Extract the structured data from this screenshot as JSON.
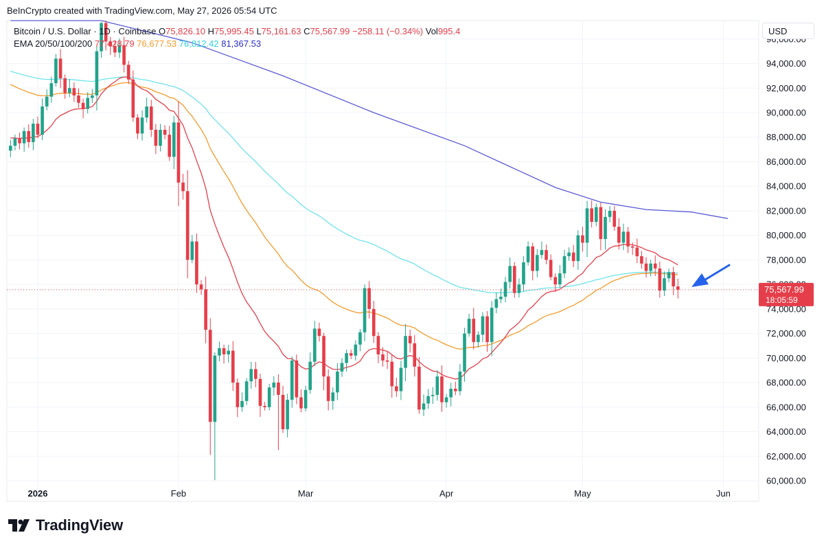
{
  "credit": "BeInCrypto created with TradingView.com, May 27, 2026 05:54 UTC",
  "legend": {
    "symbol": "Bitcoin / U.S. Dollar · 1D · Coinbase",
    "open_label": "O",
    "open": "75,826.10",
    "high_label": "H",
    "high": "75,995.45",
    "low_label": "L",
    "low": "75,161.63",
    "close_label": "C",
    "close": "75,567.99",
    "change": "−258.11 (−0.34%)",
    "vol_label": "Vol",
    "vol": "995.4",
    "ema_label": "EMA 20/50/100/200",
    "ema20": "77,428.79",
    "ema50": "76,677.53",
    "ema100": "76,812.42",
    "ema200": "81,367.53"
  },
  "currency": "USD",
  "brand": "TradingView",
  "colors": {
    "up": "#22a38a",
    "down": "#e53e4a",
    "ema20": "#e53e4a",
    "ema50": "#f59a2a",
    "ema100": "#6ee3ec",
    "ema200": "#5a5ad6",
    "arrow": "#2563eb"
  },
  "chart_data": {
    "type": "candlestick",
    "ylim": [
      60000,
      97500
    ],
    "y_ticks": [
      "96,000.00",
      "94,000.00",
      "92,000.00",
      "90,000.00",
      "88,000.00",
      "86,000.00",
      "84,000.00",
      "82,000.00",
      "80,000.00",
      "78,000.00",
      "76,000.00",
      "74,000.00",
      "72,000.00",
      "70,000.00",
      "68,000.00",
      "66,000.00",
      "64,000.00",
      "62,000.00",
      "60,000.00"
    ],
    "x_labels": [
      {
        "label": "2026",
        "day": 6,
        "bold": true
      },
      {
        "label": "Feb",
        "day": 37,
        "bold": false
      },
      {
        "label": "Mar",
        "day": 65,
        "bold": false
      },
      {
        "label": "Apr",
        "day": 96,
        "bold": false
      },
      {
        "label": "May",
        "day": 126,
        "bold": false
      },
      {
        "label": "Jun",
        "day": 157,
        "bold": false
      }
    ],
    "last_price": {
      "value": 75567.99,
      "label": "75,567.99",
      "countdown": "18:05:59"
    },
    "closes": [
      87300,
      87900,
      87500,
      88500,
      87600,
      89100,
      88200,
      90500,
      91300,
      92400,
      94400,
      92800,
      91600,
      92000,
      91400,
      90800,
      90300,
      91200,
      91400,
      95000,
      97300,
      95800,
      95400,
      94900,
      95500,
      93900,
      92700,
      89600,
      88300,
      89600,
      90500,
      88600,
      87300,
      88600,
      88200,
      86400,
      89200,
      84300,
      83600,
      78000,
      79500,
      76000,
      75600,
      72300,
      64800,
      70200,
      70800,
      70300,
      70600,
      68000,
      66000,
      66500,
      68100,
      69100,
      68300,
      66100,
      66000,
      67600,
      68000,
      67000,
      64200,
      66600,
      69800,
      66800,
      65900,
      67400,
      69700,
      72400,
      71800,
      68500,
      66500,
      67200,
      68900,
      69600,
      70400,
      70200,
      71100,
      72100,
      75700,
      74000,
      71800,
      70300,
      69800,
      69700,
      67700,
      67300,
      69200,
      71800,
      71200,
      69300,
      65800,
      66300,
      66900,
      67000,
      68500,
      66400,
      66800,
      67500,
      67300,
      68900,
      72000,
      73200,
      71300,
      71900,
      73400,
      71300,
      74100,
      74800,
      75000,
      76200,
      77500,
      75300,
      76000,
      77800,
      79100,
      77100,
      78400,
      78800,
      78000,
      76600,
      76000,
      76900,
      78300,
      78600,
      77900,
      80000,
      79400,
      82200,
      81100,
      82300,
      79700,
      81500,
      82000,
      80700,
      79400,
      80300,
      79100,
      79000,
      78300,
      77700,
      77100,
      77700,
      77300,
      75500,
      76500,
      77000,
      75840,
      75568
    ],
    "ema20_start": 88000,
    "ema50_start": 92500,
    "ema100_start": 93500,
    "ema200_points": [
      [
        0,
        104000
      ],
      [
        20,
        99000
      ],
      [
        40,
        95700
      ],
      [
        60,
        93000
      ],
      [
        80,
        90000
      ],
      [
        100,
        87300
      ],
      [
        110,
        85600
      ],
      [
        120,
        83900
      ],
      [
        130,
        82700
      ],
      [
        140,
        82100
      ],
      [
        150,
        81900
      ],
      [
        158,
        81367
      ]
    ]
  }
}
